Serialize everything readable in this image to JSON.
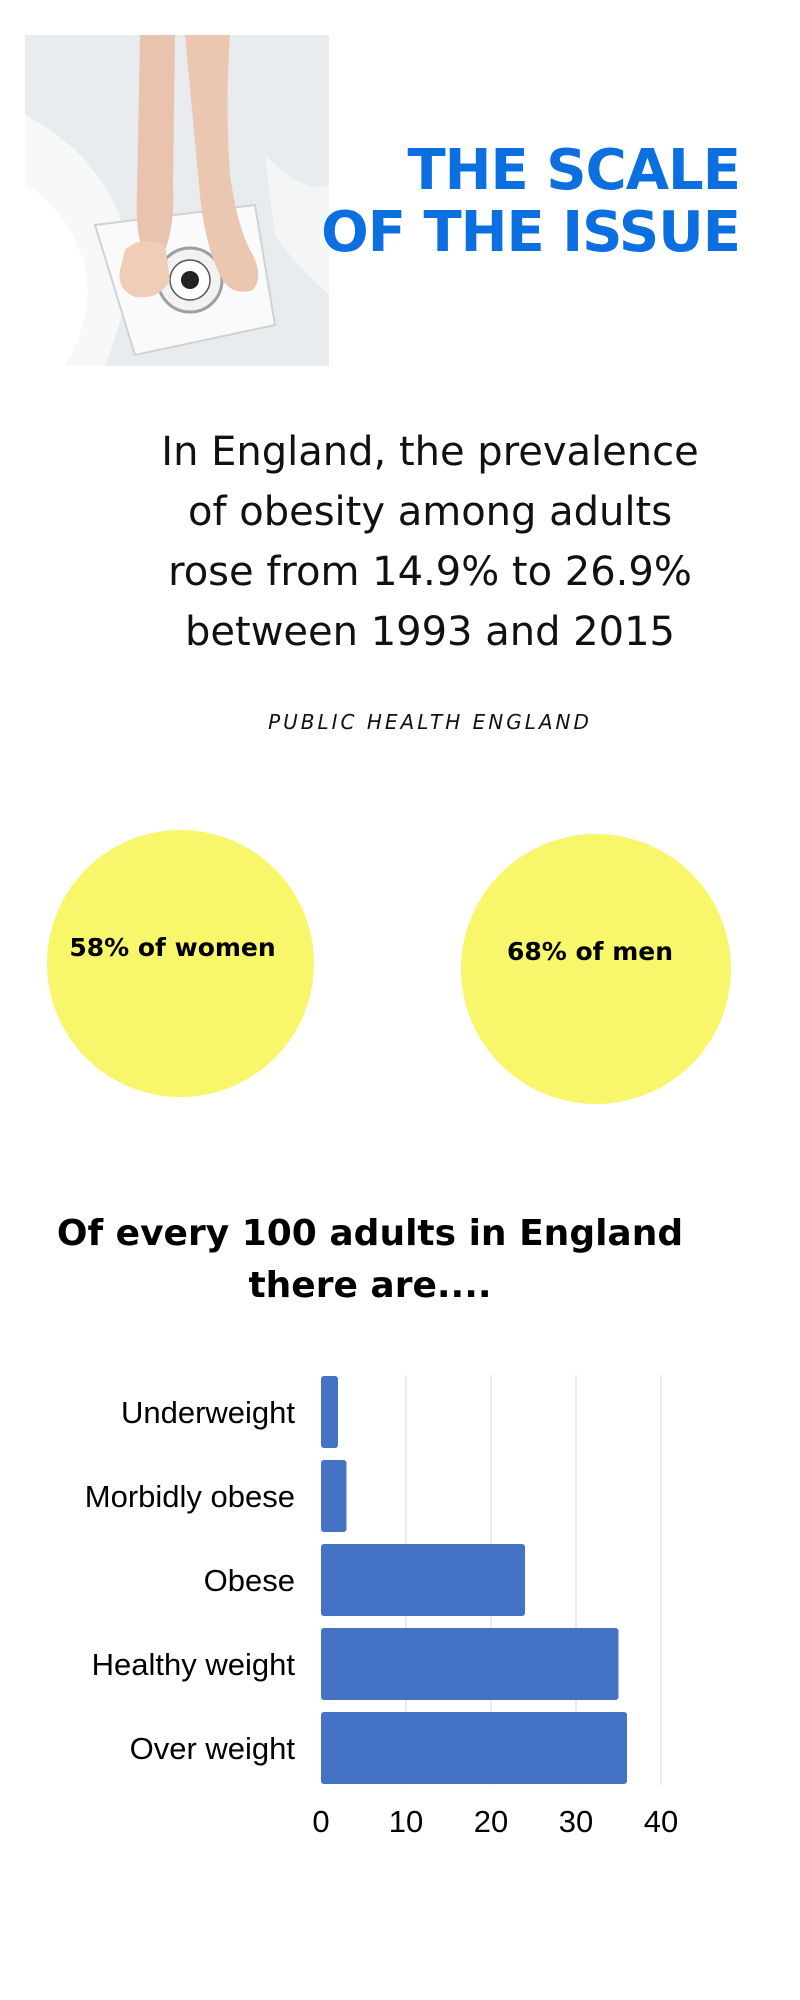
{
  "header": {
    "title_line1": "THE SCALE",
    "title_line2": "OF THE ISSUE",
    "accent_color": "#0b6fe0"
  },
  "photo": {
    "subject": "feet-on-bathroom-scale-icon"
  },
  "stat": {
    "line1": "In England, the prevalence",
    "line2": "of obesity among adults",
    "line3": "rose from 14.9% to 26.9%",
    "line4": "between 1993 and 2015",
    "source": "PUBLIC HEALTH ENGLAND"
  },
  "circles": {
    "women_label": "58% of women",
    "men_label": "68% of men",
    "color": "#f8f66b"
  },
  "chart_heading": {
    "line1": "Of every 100 adults in England",
    "line2": "there are...."
  },
  "chart_data": {
    "type": "bar",
    "orientation": "horizontal",
    "categories": [
      "Underweight",
      "Morbidly obese",
      "Obese",
      "Healthy weight",
      "Over weight"
    ],
    "values": [
      2,
      3,
      24,
      35,
      36
    ],
    "xlim": [
      0,
      40
    ],
    "xticks": [
      "0",
      "10",
      "20",
      "30",
      "40"
    ],
    "grid": true,
    "bar_color": "#4472c4",
    "grid_color": "#e6e6e6"
  }
}
